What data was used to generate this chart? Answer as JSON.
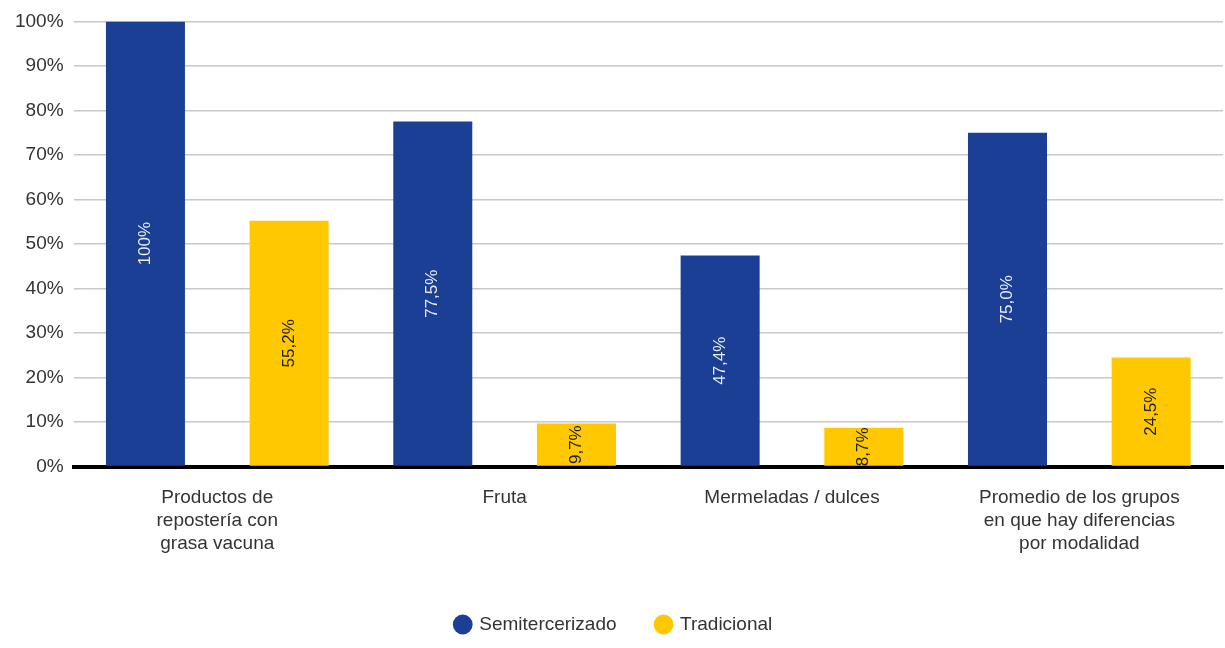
{
  "chart_data": {
    "type": "bar",
    "categories": [
      "Productos de\nrepostería con\ngrasa vacuna",
      "Fruta",
      "Mermeladas / dulces",
      "Promedio de los grupos\nen que hay diferencias\npor modalidad"
    ],
    "series": [
      {
        "name": "Semitercerizado",
        "color": "#1a3f94",
        "values": [
          100,
          77.5,
          47.4,
          75.0
        ],
        "value_labels": [
          "100%",
          "77,5%",
          "47,4%",
          "75,0%"
        ]
      },
      {
        "name": "Tradicional",
        "color": "#ffc800",
        "values": [
          55.2,
          9.7,
          8.7,
          24.5
        ],
        "value_labels": [
          "55,2%",
          "9,7%",
          "8,7%",
          "24,5%"
        ]
      }
    ],
    "ylim": [
      0,
      100
    ],
    "yticks": [
      {
        "value": 0,
        "label": "0%"
      },
      {
        "value": 10,
        "label": "10%"
      },
      {
        "value": 20,
        "label": "20%"
      },
      {
        "value": 30,
        "label": "30%"
      },
      {
        "value": 40,
        "label": "40%"
      },
      {
        "value": 50,
        "label": "50%"
      },
      {
        "value": 60,
        "label": "60%"
      },
      {
        "value": 70,
        "label": "70%"
      },
      {
        "value": 80,
        "label": "80%"
      },
      {
        "value": 90,
        "label": "90%"
      },
      {
        "value": 100,
        "label": "100%"
      }
    ],
    "grid": "y",
    "legend": "bottom",
    "marker": "circle"
  }
}
